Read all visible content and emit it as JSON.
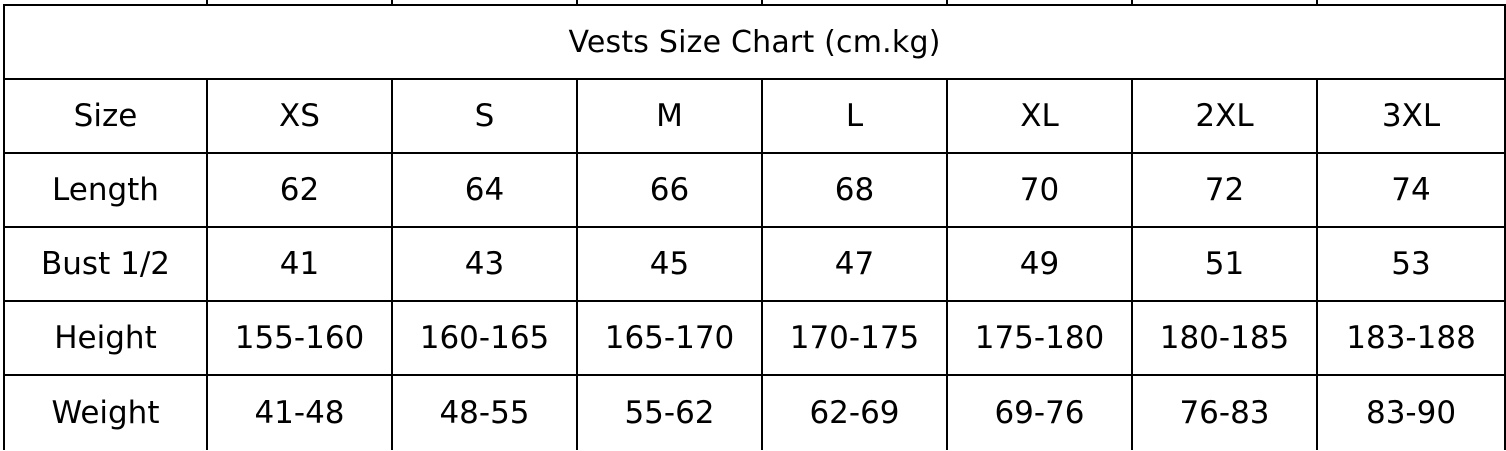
{
  "table": {
    "title": "Vests Size Chart  (cm.kg)",
    "rows": [
      {
        "label": "Size",
        "values": [
          "XS",
          "S",
          "M",
          "L",
          "XL",
          "2XL",
          "3XL"
        ]
      },
      {
        "label": "Length",
        "values": [
          "62",
          "64",
          "66",
          "68",
          "70",
          "72",
          "74"
        ]
      },
      {
        "label": "Bust 1/2",
        "values": [
          "41",
          "43",
          "45",
          "47",
          "49",
          "51",
          "53"
        ]
      },
      {
        "label": "Height",
        "values": [
          "155-160",
          "160-165",
          "165-170",
          "170-175",
          "175-180",
          "180-185",
          "183-188"
        ]
      },
      {
        "label": "Weight",
        "values": [
          "41-48",
          "48-55",
          "55-62",
          "62-69",
          "69-76",
          "76-83",
          "83-90"
        ]
      }
    ]
  },
  "colors": {
    "border": "#000000",
    "text": "#000000",
    "background": "#ffffff"
  }
}
